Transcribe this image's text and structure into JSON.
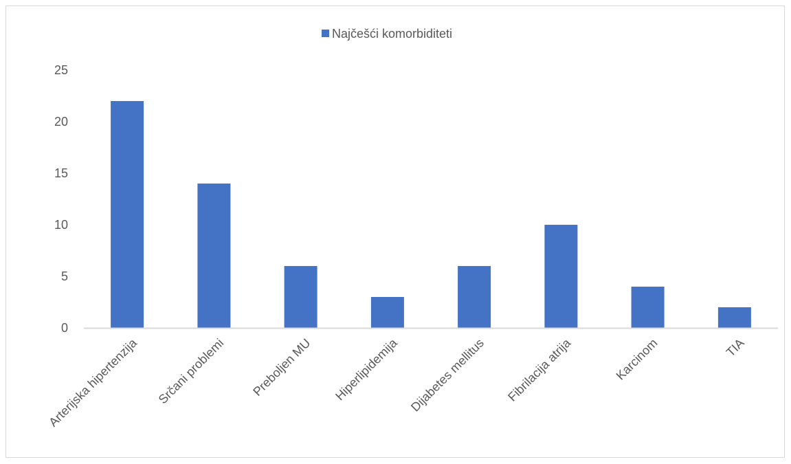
{
  "chart_data": {
    "type": "bar",
    "categories": [
      "Arterijska hipertenzija",
      "Srčani problemi",
      "Preboljen MU",
      "Hiperlipidemija",
      "Dijabetes mellitus",
      "Fibrilacija atrija",
      "Karcinom",
      "TIA"
    ],
    "series": [
      {
        "name": "Najčešći komorbiditeti",
        "values": [
          22,
          14,
          6,
          3,
          6,
          10,
          4,
          2
        ],
        "color": "#4472C4"
      }
    ],
    "ylim": [
      0,
      25
    ],
    "yticks": [
      0,
      5,
      10,
      15,
      20,
      25
    ],
    "grid": false,
    "legend": "top-center",
    "axis_color": "#d9d9d9",
    "label_color": "#595959"
  }
}
